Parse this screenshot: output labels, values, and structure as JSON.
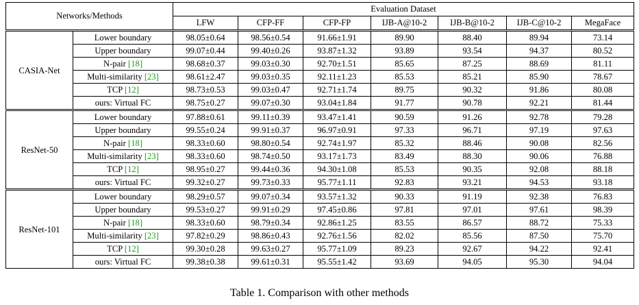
{
  "header": {
    "corner": "Networks/Methods",
    "group": "Evaluation Dataset",
    "columns": [
      "LFW",
      "CFP-FF",
      "CFP-FP",
      "IJB-A@10-2",
      "IJB-B@10-2",
      "IJB-C@10-2",
      "MegaFace"
    ]
  },
  "groups": [
    {
      "network": "CASIA-Net",
      "rows": [
        {
          "method": "Lower boundary",
          "ref": "",
          "values": [
            "98.05±0.64",
            "98.56±0.54",
            "91.66±1.91",
            "89.90",
            "88.40",
            "89.94",
            "73.14"
          ],
          "bold": false
        },
        {
          "method": "Upper boundary",
          "ref": "",
          "values": [
            "99.07±0.44",
            "99.40±0.26",
            "93.87±1.32",
            "93.89",
            "93.54",
            "94.37",
            "80.52"
          ],
          "bold": false
        },
        {
          "method": "N-pair ",
          "ref": "[18]",
          "values": [
            "98.68±0.37",
            "99.03±0.30",
            "92.70±1.51",
            "85.65",
            "87.25",
            "88.69",
            "81.11"
          ],
          "bold": false
        },
        {
          "method": "Multi-similarity ",
          "ref": "[23]",
          "values": [
            "98.61±2.47",
            "99.03±0.35",
            "92.11±1.23",
            "85.53",
            "85.21",
            "85.90",
            "78.67"
          ],
          "bold": false
        },
        {
          "method": "TCP ",
          "ref": "[12]",
          "values": [
            "98.73±0.53",
            "99.03±0.47",
            "92.71±1.74",
            "89.75",
            "90.32",
            "91.86",
            "80.08"
          ],
          "bold": false
        },
        {
          "method": "ours: Virtual FC",
          "ref": "",
          "values": [
            "98.75±0.27",
            "99.07±0.30",
            "93.04±1.84",
            "91.77",
            "90.78",
            "92.21",
            "81.44"
          ],
          "bold": true
        }
      ]
    },
    {
      "network": "ResNet-50",
      "rows": [
        {
          "method": "Lower boundary",
          "ref": "",
          "values": [
            "97.88±0.61",
            "99.11±0.39",
            "93.47±1.41",
            "90.59",
            "91.26",
            "92.78",
            "79.28"
          ],
          "bold": false
        },
        {
          "method": "Upper boundary",
          "ref": "",
          "values": [
            "99.55±0.24",
            "99.91±0.37",
            "96.97±0.91",
            "97.33",
            "96.71",
            "97.19",
            "97.63"
          ],
          "bold": false
        },
        {
          "method": "N-pair ",
          "ref": "[18]",
          "values": [
            "98.33±0.60",
            "98.80±0.54",
            "92.74±1.97",
            "85.32",
            "88.46",
            "90.08",
            "82.56"
          ],
          "bold": false
        },
        {
          "method": "Multi-similarity ",
          "ref": "[23]",
          "values": [
            "98.33±0.60",
            "98.74±0.50",
            "93.17±1.73",
            "83.49",
            "88.30",
            "90.06",
            "76.88"
          ],
          "bold": false
        },
        {
          "method": "TCP ",
          "ref": "[12]",
          "values": [
            "98.95±0.27",
            "99.44±0.36",
            "94.30±1.08",
            "85.53",
            "90.35",
            "92.08",
            "88.18"
          ],
          "bold": false
        },
        {
          "method": "ours: Virtual FC",
          "ref": "",
          "values": [
            "99.32±0.27",
            "99.73±0.33",
            "95.77±1.11",
            "92.83",
            "93.21",
            "94.53",
            "93.18"
          ],
          "bold": true
        }
      ]
    },
    {
      "network": "ResNet-101",
      "rows": [
        {
          "method": "Lower boundary",
          "ref": "",
          "values": [
            "98.29±0.57",
            "99.07±0.34",
            "93.57±1.32",
            "90.33",
            "91.19",
            "92.38",
            "76.83"
          ],
          "bold": false
        },
        {
          "method": "Upper boundary",
          "ref": "",
          "values": [
            "99.53±0.27",
            "99.91±0.29",
            "97.45±0.86",
            "97.81",
            "97.01",
            "97.61",
            "98.39"
          ],
          "bold": false
        },
        {
          "method": "N-pair ",
          "ref": "[18]",
          "values": [
            "98.33±0.60",
            "98.79±0.34",
            "92.86±1.25",
            "83.55",
            "86.57",
            "88.72",
            "75.33"
          ],
          "bold": false
        },
        {
          "method": "Multi-similarity ",
          "ref": "[23]",
          "values": [
            "97.82±0.29",
            "98.86±0.43",
            "92.76±1.56",
            "82.02",
            "85.56",
            "87.50",
            "75.70"
          ],
          "bold": false
        },
        {
          "method": "TCP ",
          "ref": "[12]",
          "values": [
            "99.30±0.28",
            "99.63±0.27",
            "95.77±1.09",
            "89.23",
            "92.67",
            "94.22",
            "92.41"
          ],
          "bold": false
        },
        {
          "method": "ours: Virtual FC",
          "ref": "",
          "values": [
            "99.38±0.38",
            "99.61±0.31",
            "95.55±1.42",
            "93.69",
            "94.05",
            "95.30",
            "94.04"
          ],
          "bold": true
        }
      ]
    }
  ],
  "caption": "Table 1. Comparison with other methods",
  "colors": {
    "reference": "#1a9a1a"
  }
}
